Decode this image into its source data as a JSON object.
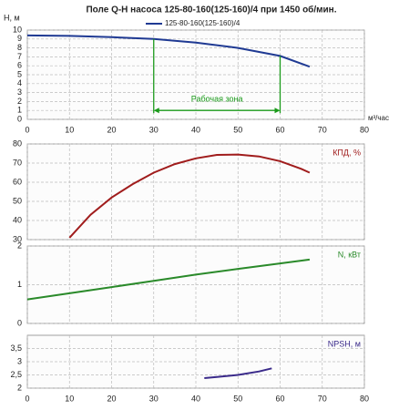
{
  "chart_data": [
    {
      "type": "line",
      "title": "Поле Q-H насоса 125-80-160(125-160)/4 при 1450 об/мин.",
      "ylabel": "Н, м",
      "xlabel": "м³/час",
      "x": [
        0,
        10,
        20,
        30,
        40,
        50,
        60,
        67
      ],
      "series": [
        {
          "name": "125-80-160(125-160)/4",
          "color": "#1f3a93",
          "values": [
            9.4,
            9.35,
            9.2,
            9.0,
            8.6,
            8.0,
            7.1,
            5.9
          ]
        }
      ],
      "legend": "top",
      "annotation": {
        "text": "Рабочая зона",
        "x": [
          30,
          60
        ],
        "y": 1,
        "color": "#1a9a1a"
      },
      "xlim": [
        0,
        80
      ],
      "xticks": [
        0,
        10,
        20,
        30,
        40,
        50,
        60,
        70,
        80
      ],
      "xtick_labels": true,
      "ylim": [
        0,
        10
      ],
      "yticks": [
        0,
        1,
        2,
        3,
        4,
        5,
        6,
        7,
        8,
        9,
        10
      ],
      "grid": true
    },
    {
      "type": "line",
      "x": [
        10,
        15,
        20,
        25,
        30,
        35,
        40,
        45,
        50,
        55,
        60,
        65,
        67
      ],
      "series": [
        {
          "name": "КПД, %",
          "color": "#a01c1c",
          "values": [
            31,
            43,
            52,
            59,
            65,
            69.5,
            72.5,
            74.3,
            74.5,
            73.5,
            71,
            67,
            65
          ]
        }
      ],
      "legend": "upper right",
      "xlim": [
        0,
        80
      ],
      "xticks": [
        0,
        10,
        20,
        30,
        40,
        50,
        60,
        70,
        80
      ],
      "xtick_labels": false,
      "ylim": [
        30,
        80
      ],
      "yticks": [
        30,
        40,
        50,
        60,
        70,
        80
      ],
      "grid": true
    },
    {
      "type": "line",
      "x": [
        0,
        10,
        20,
        30,
        40,
        50,
        60,
        67
      ],
      "series": [
        {
          "name": "N, кВт",
          "color": "#2a8a2a",
          "values": [
            0.62,
            0.78,
            0.94,
            1.1,
            1.26,
            1.41,
            1.55,
            1.65
          ]
        }
      ],
      "legend": "upper right",
      "xlim": [
        0,
        80
      ],
      "xticks": [
        0,
        10,
        20,
        30,
        40,
        50,
        60,
        70,
        80
      ],
      "xtick_labels": false,
      "ylim": [
        0,
        2
      ],
      "yticks": [
        0,
        1,
        2
      ],
      "grid": true
    },
    {
      "type": "line",
      "x": [
        42,
        45,
        50,
        55,
        58
      ],
      "series": [
        {
          "name": "NPSH, м",
          "color": "#3a2a8a",
          "values": [
            2.38,
            2.42,
            2.5,
            2.63,
            2.75
          ]
        }
      ],
      "legend": "upper right",
      "xlim": [
        0,
        80
      ],
      "xticks": [
        0,
        10,
        20,
        30,
        40,
        50,
        60,
        70,
        80
      ],
      "xtick_labels": true,
      "ylim": [
        2,
        4
      ],
      "yticks": [
        2,
        {
          "value": 2.5,
          "label": "2,5"
        },
        3,
        {
          "value": 3.5,
          "label": "3,5"
        }
      ],
      "grid": true
    }
  ]
}
